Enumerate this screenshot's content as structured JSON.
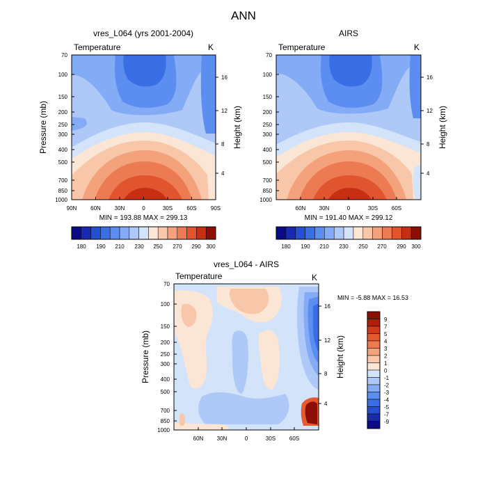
{
  "figure_title": "ANN",
  "chart_data": [
    {
      "type": "heatmap",
      "title": "vres_L064 (yrs 2001-2004)",
      "variable": "Temperature",
      "units": "K",
      "ylabel": "Pressure (mb)",
      "y2label": "Height (km)",
      "yticks": [
        "70",
        "100",
        "150",
        "200",
        "250",
        "300",
        "400",
        "500",
        "700",
        "850",
        "1000"
      ],
      "xticks": [
        "90N",
        "60N",
        "30N",
        "0",
        "30S",
        "60S",
        "90S"
      ],
      "y2ticks": [
        "16",
        "12",
        "8",
        "4"
      ],
      "stats": "MIN = 193.88  MAX = 299.13",
      "colorbar_labels": [
        "180",
        "190",
        "210",
        "230",
        "250",
        "270",
        "290",
        "300"
      ]
    },
    {
      "type": "heatmap",
      "title": "AIRS",
      "variable": "Temperature",
      "units": "K",
      "y2label": "Height (km)",
      "yticks": [
        "70",
        "100",
        "150",
        "200",
        "250",
        "300",
        "400",
        "500",
        "700",
        "850",
        "1000"
      ],
      "xticks": [
        "60N",
        "30N",
        "0",
        "30S",
        "60S"
      ],
      "y2ticks": [
        "16",
        "12",
        "8",
        "4"
      ],
      "stats": "MIN = 191.40  MAX = 299.12",
      "colorbar_labels": [
        "180",
        "190",
        "210",
        "230",
        "250",
        "270",
        "290",
        "300"
      ]
    },
    {
      "type": "heatmap",
      "title": "vres_L064 - AIRS",
      "variable": "Temperature",
      "units": "K",
      "ylabel": "Pressure (mb)",
      "y2label": "Height (km)",
      "yticks": [
        "70",
        "100",
        "150",
        "200",
        "250",
        "300",
        "400",
        "500",
        "700",
        "850",
        "1000"
      ],
      "xticks": [
        "60N",
        "30N",
        "0",
        "30S",
        "60S"
      ],
      "y2ticks": [
        "16",
        "12",
        "8",
        "4"
      ],
      "stats": "MIN =  -5.88  MAX =  16.53",
      "colorbar_labels": [
        "9",
        "7",
        "5",
        "4",
        "3",
        "2",
        "1",
        "0",
        "-1",
        "-2",
        "-3",
        "-4",
        "-5",
        "-7",
        "-9"
      ]
    }
  ],
  "colors": {
    "temperature_scale": [
      "#0b0b86",
      "#1a2ab0",
      "#2450d0",
      "#3a6ee4",
      "#5b8ef0",
      "#84abf5",
      "#aec9f7",
      "#d3e3fa",
      "#fbe6d6",
      "#f8c6a8",
      "#f4a27c",
      "#ec7a53",
      "#e0542e",
      "#c62f14",
      "#8c0e04"
    ],
    "difference_scale": [
      "#8c0e04",
      "#b31e0a",
      "#d23a19",
      "#e55a2f",
      "#f07a4c",
      "#f4a27c",
      "#f8c6a8",
      "#fbe6d6",
      "#d3e3fa",
      "#aec9f7",
      "#84abf5",
      "#5b8ef0",
      "#3a6ee4",
      "#2450d0",
      "#1a2ab0",
      "#0b0b86"
    ]
  }
}
